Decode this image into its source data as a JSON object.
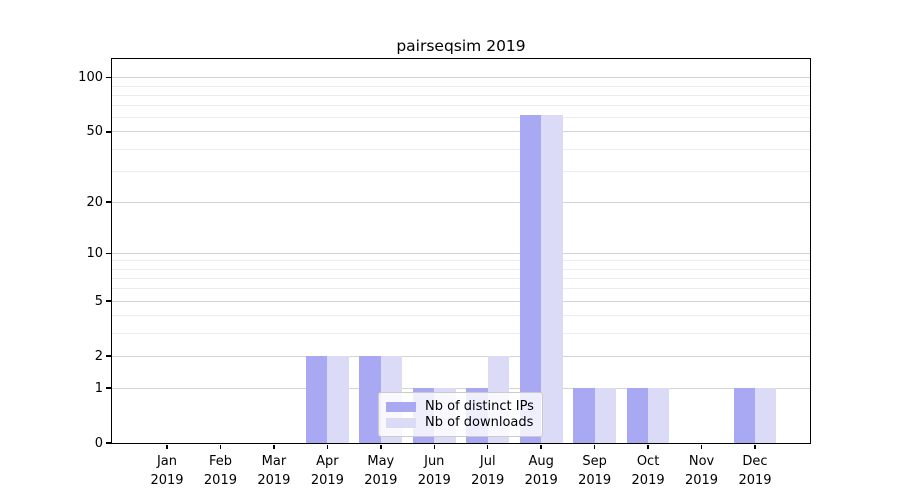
{
  "chart_data": {
    "type": "bar",
    "title": "pairseqsim 2019",
    "categories": [
      "Jan",
      "Feb",
      "Mar",
      "Apr",
      "May",
      "Jun",
      "Jul",
      "Aug",
      "Sep",
      "Oct",
      "Nov",
      "Dec"
    ],
    "year_label": "2019",
    "series": [
      {
        "name": "Nb of distinct IPs",
        "color": "#a8a8f3",
        "values": [
          0,
          0,
          0,
          2,
          2,
          1,
          1,
          62,
          1,
          1,
          0,
          1
        ]
      },
      {
        "name": "Nb of downloads",
        "color": "#dbdbf8",
        "values": [
          0,
          0,
          0,
          2,
          2,
          1,
          2,
          62,
          1,
          1,
          0,
          1
        ]
      }
    ],
    "yscale": "log1p",
    "ylim": [
      0,
      127
    ],
    "y_major_ticks": [
      0,
      1,
      2,
      5,
      10,
      20,
      50,
      100
    ],
    "y_minor_ticks": [
      3,
      4,
      6,
      7,
      8,
      9,
      30,
      40,
      60,
      70,
      80,
      90
    ],
    "grid": "horizontal",
    "legend_position": "lower center"
  }
}
